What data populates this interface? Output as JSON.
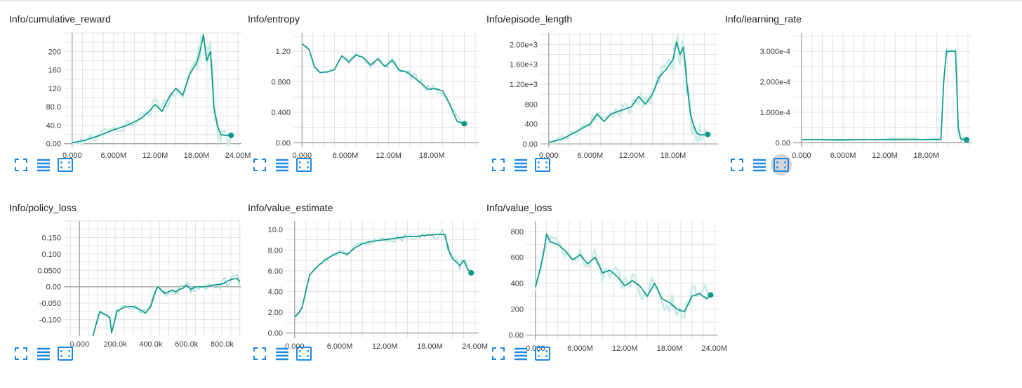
{
  "colors": {
    "line": "#0d9987",
    "raw": "#9fdcd3",
    "fill": "#cdece7",
    "grid": "#e2e2e2",
    "axis": "#9e9e9e",
    "icon": "#1e88e5"
  },
  "icons": [
    "fit-domain-icon",
    "toggle-log-scale-icon",
    "expand-chart-icon"
  ],
  "charts": [
    {
      "title": "Info/cumulative_reward",
      "chart_data": {
        "type": "line",
        "title": "Info/cumulative_reward",
        "x_tick_labels": [
          "0.000",
          "6.000M",
          "12.00M",
          "18.00M",
          "24.00M"
        ],
        "x_ticks": [
          0,
          6,
          12,
          18,
          24
        ],
        "y_tick_labels": [
          "0.00",
          "40.0",
          "80.0",
          "120",
          "160",
          "200"
        ],
        "y_ticks": [
          0,
          40,
          80,
          120,
          160,
          200
        ],
        "xlim": [
          -1.2,
          24.5
        ],
        "ylim": [
          -8,
          240
        ],
        "band": true,
        "series": [
          {
            "name": "smoothed",
            "x": [
              0,
              2,
              4,
              6,
              8,
              10,
              11,
              12,
              13,
              14,
              15,
              16,
              17,
              18,
              18.5,
              19,
              19.5,
              20,
              20.2,
              20.5,
              21,
              21.5,
              22,
              23
            ],
            "y": [
              2,
              8,
              18,
              30,
              40,
              55,
              68,
              85,
              70,
              100,
              120,
              105,
              150,
              175,
              200,
              235,
              180,
              200,
              160,
              80,
              40,
              20,
              18,
              18
            ]
          }
        ]
      }
    },
    {
      "title": "Info/entropy",
      "chart_data": {
        "type": "line",
        "title": "Info/entropy",
        "x_tick_labels": [
          "0.000",
          "6.000M",
          "12.00M",
          "18.00M"
        ],
        "x_ticks": [
          0,
          6,
          12,
          18
        ],
        "y_tick_labels": [
          "0.00",
          "0.400",
          "0.800",
          "1.20"
        ],
        "y_ticks": [
          0,
          0.4,
          0.8,
          1.2
        ],
        "xlim": [
          -1.2,
          24.5
        ],
        "ylim": [
          -0.06,
          1.44
        ],
        "band": false,
        "series": [
          {
            "name": "smoothed",
            "x": [
              0,
              1,
              1.7,
              2.5,
              3.5,
              4.5,
              5.5,
              6.5,
              7.5,
              8.5,
              9.5,
              10.5,
              11.5,
              12.5,
              13.5,
              14.5,
              15.5,
              16.5,
              17.5,
              18.5,
              19.5,
              20.5,
              21.5,
              22.5
            ],
            "y": [
              1.3,
              1.22,
              1.0,
              0.92,
              0.93,
              0.96,
              1.14,
              1.06,
              1.15,
              1.12,
              1.02,
              1.1,
              1.0,
              1.08,
              0.95,
              0.93,
              0.86,
              0.78,
              0.7,
              0.71,
              0.68,
              0.5,
              0.28,
              0.25
            ]
          }
        ]
      }
    },
    {
      "title": "Info/episode_length",
      "chart_data": {
        "type": "line",
        "title": "Info/episode_length",
        "x_tick_labels": [
          "0.000",
          "6.000M",
          "12.00M",
          "18.00M"
        ],
        "x_ticks": [
          0,
          6,
          12,
          18
        ],
        "y_tick_labels": [
          "0.00",
          "400",
          "800",
          "1.20e+3",
          "1.60e+3",
          "2.00e+3"
        ],
        "y_ticks": [
          0,
          400,
          800,
          1200,
          1600,
          2000
        ],
        "xlim": [
          -1.2,
          24.5
        ],
        "ylim": [
          -70,
          2230
        ],
        "band": true,
        "series": [
          {
            "name": "smoothed",
            "x": [
              0,
              2,
              4,
              6,
              7,
              8,
              9,
              10,
              11,
              12,
              13,
              14,
              15,
              16,
              17,
              18,
              18.5,
              19,
              19.5,
              20,
              20.5,
              21,
              21.5,
              22,
              23
            ],
            "y": [
              30,
              100,
              250,
              400,
              600,
              450,
              600,
              650,
              700,
              750,
              950,
              800,
              1000,
              1350,
              1500,
              1700,
              2050,
              1800,
              1950,
              1200,
              600,
              350,
              200,
              180,
              190
            ]
          }
        ]
      }
    },
    {
      "title": "Info/learning_rate",
      "chart_data": {
        "type": "line",
        "title": "Info/learning_rate",
        "x_tick_labels": [
          "0.000",
          "6.000M",
          "12.00M",
          "18.00M"
        ],
        "x_ticks": [
          0,
          6,
          12,
          18
        ],
        "y_tick_labels": [
          "0.00",
          "1.000e-4",
          "2.000e-4",
          "3.000e-4"
        ],
        "y_ticks": [
          0,
          0.0001,
          0.0002,
          0.0003
        ],
        "xlim": [
          -1.2,
          24.5
        ],
        "ylim": [
          -1.5e-05,
          0.00036
        ],
        "band": false,
        "series": [
          {
            "name": "smoothed",
            "x": [
              0,
              16,
              20.1,
              20.5,
              20.9,
              21.3,
              22.2,
              22.6,
              22.9,
              23.3,
              23.8
            ],
            "y": [
              1e-05,
              1e-05,
              1e-05,
              0.0002,
              0.0003,
              0.0003,
              0.0003,
              5e-05,
              1.5e-05,
              1e-05,
              1e-05
            ]
          }
        ]
      }
    },
    {
      "title": "Info/policy_loss",
      "chart_data": {
        "type": "line",
        "title": "Info/policy_loss",
        "x_tick_labels": [
          "0.000",
          "200.0k",
          "400.0k",
          "600.0k",
          "800.0k"
        ],
        "x_ticks": [
          0,
          200,
          400,
          600,
          800
        ],
        "y_tick_labels": [
          "-0.100",
          "-0.050",
          "0.00",
          "0.0500",
          "0.100",
          "0.150"
        ],
        "y_ticks": [
          -0.1,
          -0.05,
          0,
          0.05,
          0.1,
          0.15
        ],
        "xlim": [
          -88,
          905
        ],
        "ylim": [
          -0.15,
          0.2
        ],
        "band": false,
        "series": [
          {
            "name": "smoothed",
            "x": [
              75,
              100,
              115,
              130,
              150,
              170,
              180,
              210,
              250,
              300,
              340,
              370,
              400,
              425,
              440,
              460,
              480,
              500,
              520,
              540,
              560,
              580,
              600,
              625,
              650,
              700,
              740,
              780,
              800,
              840,
              880,
              900
            ],
            "y": [
              -0.15,
              -0.1,
              -0.075,
              -0.082,
              -0.085,
              -0.095,
              -0.14,
              -0.075,
              -0.062,
              -0.06,
              -0.07,
              -0.08,
              -0.06,
              -0.015,
              0.0,
              -0.01,
              -0.02,
              -0.015,
              -0.01,
              -0.015,
              -0.008,
              -0.005,
              0.005,
              -0.008,
              0.0,
              0.0,
              0.004,
              0.007,
              0.008,
              0.02,
              0.026,
              0.017
            ]
          }
        ]
      }
    },
    {
      "title": "Info/value_estimate",
      "chart_data": {
        "type": "line",
        "title": "Info/value_estimate",
        "x_tick_labels": [
          "0.000",
          "6.000M",
          "12.00M",
          "18.00M",
          "24.00M"
        ],
        "x_ticks": [
          0,
          6,
          12,
          18,
          24
        ],
        "y_tick_labels": [
          "0.00",
          "2.00",
          "4.00",
          "6.00",
          "8.00",
          "10.0"
        ],
        "y_ticks": [
          0,
          2,
          4,
          6,
          8,
          10
        ],
        "xlim": [
          -1.2,
          24.5
        ],
        "ylim": [
          -0.5,
          10.8
        ],
        "band": false,
        "series": [
          {
            "name": "smoothed",
            "x": [
              0,
              0.5,
              1,
              1.5,
              2,
              3,
              4,
              5,
              6,
              7,
              8,
              9,
              10,
              11,
              12,
              13,
              14,
              15,
              16,
              17,
              18,
              19,
              20,
              20.5,
              21,
              22,
              22.5,
              23,
              23.5
            ],
            "y": [
              1.6,
              1.9,
              2.5,
              4.1,
              5.6,
              6.4,
              7.0,
              7.5,
              7.8,
              7.6,
              8.2,
              8.6,
              8.8,
              8.9,
              9.0,
              9.1,
              9.2,
              9.3,
              9.3,
              9.4,
              9.45,
              9.5,
              9.5,
              8.0,
              7.2,
              6.5,
              7.0,
              6.2,
              5.8
            ]
          }
        ]
      }
    },
    {
      "title": "Info/value_loss",
      "chart_data": {
        "type": "line",
        "title": "Info/value_loss",
        "x_tick_labels": [
          "0.000",
          "6.000M",
          "12.00M",
          "18.00M",
          "24.00M"
        ],
        "x_ticks": [
          0,
          6,
          12,
          18,
          24
        ],
        "y_tick_labels": [
          "0.00",
          "200",
          "400",
          "600",
          "800"
        ],
        "y_ticks": [
          0,
          200,
          400,
          600,
          800
        ],
        "xlim": [
          -1.2,
          24.5
        ],
        "ylim": [
          -40,
          880
        ],
        "band": true,
        "series": [
          {
            "name": "smoothed",
            "x": [
              0,
              0.5,
              1,
              1.5,
              2,
              3,
              4,
              5,
              6,
              7,
              8,
              9,
              10,
              11,
              12,
              13,
              14,
              15,
              16,
              17,
              18,
              19,
              20,
              21,
              22,
              23,
              23.5
            ],
            "y": [
              370,
              480,
              600,
              780,
              720,
              700,
              650,
              580,
              620,
              550,
              600,
              480,
              500,
              450,
              380,
              420,
              380,
              300,
              400,
              280,
              250,
              200,
              180,
              300,
              320,
              280,
              310
            ]
          }
        ]
      }
    }
  ]
}
